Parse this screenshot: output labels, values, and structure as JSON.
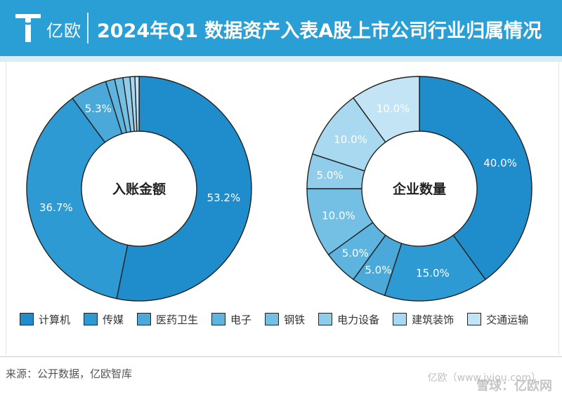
{
  "header": {
    "brand": "亿欧",
    "title": "2024年Q1 数据资产入表A股上市公司行业归属情况"
  },
  "colors": {
    "header_bg": "#2a9fd6",
    "palette": [
      "#1f8ccc",
      "#2e9ad3",
      "#4aa9d9",
      "#5db4de",
      "#74c0e4",
      "#8fcdea",
      "#a9d9f0",
      "#c2e4f5"
    ]
  },
  "chart_data": [
    {
      "type": "pie",
      "center_label": "入账金额",
      "categories": [
        "计算机",
        "传媒",
        "医药卫生",
        "电子",
        "钢铁",
        "电力设备",
        "建筑装饰",
        "交通运输"
      ],
      "values": [
        53.2,
        36.7,
        5.3,
        1.3,
        1.2,
        1.0,
        0.7,
        0.6
      ],
      "data_labels": [
        "53.2%",
        "36.7%",
        "5.3%",
        "",
        "",
        "",
        "",
        ""
      ]
    },
    {
      "type": "pie",
      "center_label": "企业数量",
      "categories": [
        "计算机",
        "传媒",
        "医药卫生",
        "电子",
        "钢铁",
        "电力设备",
        "建筑装饰",
        "交通运输"
      ],
      "values": [
        40.0,
        15.0,
        5.0,
        5.0,
        10.0,
        5.0,
        10.0,
        10.0
      ],
      "data_labels": [
        "40.0%",
        "15.0%",
        "5.0%",
        "5.0%",
        "10.0%",
        "5.0%",
        "10.0%",
        "10.0%"
      ]
    }
  ],
  "legend": {
    "items": [
      "计算机",
      "传媒",
      "医药卫生",
      "电子",
      "钢铁",
      "电力设备",
      "建筑装饰",
      "交通运输"
    ]
  },
  "footer": {
    "source": "来源：公开数据，亿欧智库",
    "watermark": "亿欧（www.iyiou.com）",
    "watermark_logo": "雪球：亿欧网"
  }
}
